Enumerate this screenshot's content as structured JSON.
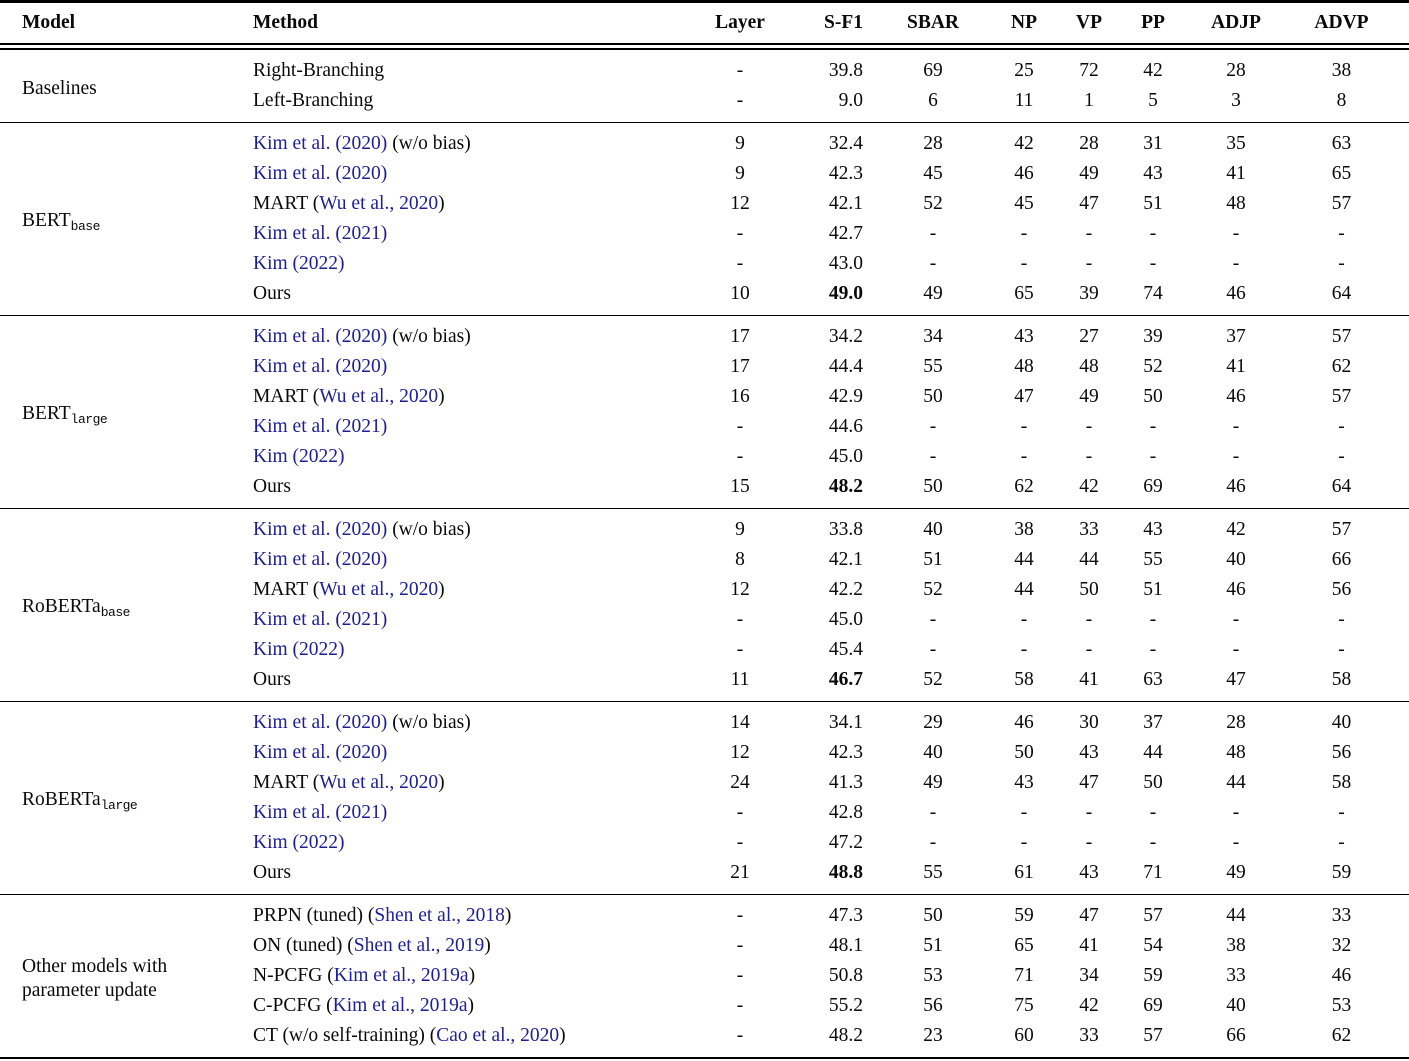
{
  "page": {
    "background": "#ffffff"
  },
  "colors": {
    "text": "#0a0a0a",
    "link": "#1e1e96",
    "rule": "#000000"
  },
  "table": {
    "columns": [
      "Model",
      "Method",
      "Layer",
      "S-F1",
      "SBAR",
      "NP",
      "VP",
      "PP",
      "ADJP",
      "ADVP"
    ],
    "int_keys": [
      "sbar",
      "np",
      "vp",
      "pp",
      "adjp",
      "advp"
    ],
    "sections": [
      {
        "model": {
          "name": "Baselines",
          "sub": ""
        },
        "rows": [
          {
            "method": [
              {
                "t": "Right-Branching",
                "link": false
              }
            ],
            "layer": "-",
            "sf1": "39.8",
            "bold": false,
            "vals": [
              "69",
              "25",
              "72",
              "42",
              "28",
              "38"
            ]
          },
          {
            "method": [
              {
                "t": "Left-Branching",
                "link": false
              }
            ],
            "layer": "-",
            "sf1": "9.0",
            "bold": false,
            "vals": [
              "6",
              "11",
              "1",
              "5",
              "3",
              "8"
            ]
          }
        ]
      },
      {
        "model": {
          "name": "BERT",
          "sub": "base"
        },
        "rows": [
          {
            "method": [
              {
                "t": "Kim et al. (2020)",
                "link": true
              },
              {
                "t": " (w/o bias)",
                "link": false
              }
            ],
            "layer": "9",
            "sf1": "32.4",
            "bold": false,
            "vals": [
              "28",
              "42",
              "28",
              "31",
              "35",
              "63"
            ]
          },
          {
            "method": [
              {
                "t": "Kim et al. (2020)",
                "link": true
              }
            ],
            "layer": "9",
            "sf1": "42.3",
            "bold": false,
            "vals": [
              "45",
              "46",
              "49",
              "43",
              "41",
              "65"
            ]
          },
          {
            "method": [
              {
                "t": "MART (",
                "link": false
              },
              {
                "t": "Wu et al., 2020",
                "link": true
              },
              {
                "t": ")",
                "link": false
              }
            ],
            "layer": "12",
            "sf1": "42.1",
            "bold": false,
            "vals": [
              "52",
              "45",
              "47",
              "51",
              "48",
              "57"
            ]
          },
          {
            "method": [
              {
                "t": "Kim et al. (2021)",
                "link": true
              }
            ],
            "layer": "-",
            "sf1": "42.7",
            "bold": false,
            "vals": [
              "-",
              "-",
              "-",
              "-",
              "-",
              "-"
            ]
          },
          {
            "method": [
              {
                "t": "Kim (2022)",
                "link": true
              }
            ],
            "layer": "-",
            "sf1": "43.0",
            "bold": false,
            "vals": [
              "-",
              "-",
              "-",
              "-",
              "-",
              "-"
            ]
          },
          {
            "method": [
              {
                "t": "Ours",
                "link": false
              }
            ],
            "layer": "10",
            "sf1": "49.0",
            "bold": true,
            "vals": [
              "49",
              "65",
              "39",
              "74",
              "46",
              "64"
            ]
          }
        ]
      },
      {
        "model": {
          "name": "BERT",
          "sub": "large"
        },
        "rows": [
          {
            "method": [
              {
                "t": "Kim et al. (2020)",
                "link": true
              },
              {
                "t": " (w/o bias)",
                "link": false
              }
            ],
            "layer": "17",
            "sf1": "34.2",
            "bold": false,
            "vals": [
              "34",
              "43",
              "27",
              "39",
              "37",
              "57"
            ]
          },
          {
            "method": [
              {
                "t": "Kim et al. (2020)",
                "link": true
              }
            ],
            "layer": "17",
            "sf1": "44.4",
            "bold": false,
            "vals": [
              "55",
              "48",
              "48",
              "52",
              "41",
              "62"
            ]
          },
          {
            "method": [
              {
                "t": "MART (",
                "link": false
              },
              {
                "t": "Wu et al., 2020",
                "link": true
              },
              {
                "t": ")",
                "link": false
              }
            ],
            "layer": "16",
            "sf1": "42.9",
            "bold": false,
            "vals": [
              "50",
              "47",
              "49",
              "50",
              "46",
              "57"
            ]
          },
          {
            "method": [
              {
                "t": "Kim et al. (2021)",
                "link": true
              }
            ],
            "layer": "-",
            "sf1": "44.6",
            "bold": false,
            "vals": [
              "-",
              "-",
              "-",
              "-",
              "-",
              "-"
            ]
          },
          {
            "method": [
              {
                "t": "Kim (2022)",
                "link": true
              }
            ],
            "layer": "-",
            "sf1": "45.0",
            "bold": false,
            "vals": [
              "-",
              "-",
              "-",
              "-",
              "-",
              "-"
            ]
          },
          {
            "method": [
              {
                "t": "Ours",
                "link": false
              }
            ],
            "layer": "15",
            "sf1": "48.2",
            "bold": true,
            "vals": [
              "50",
              "62",
              "42",
              "69",
              "46",
              "64"
            ]
          }
        ]
      },
      {
        "model": {
          "name": "RoBERTa",
          "sub": "base"
        },
        "rows": [
          {
            "method": [
              {
                "t": "Kim et al. (2020)",
                "link": true
              },
              {
                "t": " (w/o bias)",
                "link": false
              }
            ],
            "layer": "9",
            "sf1": "33.8",
            "bold": false,
            "vals": [
              "40",
              "38",
              "33",
              "43",
              "42",
              "57"
            ]
          },
          {
            "method": [
              {
                "t": "Kim et al. (2020)",
                "link": true
              }
            ],
            "layer": "8",
            "sf1": "42.1",
            "bold": false,
            "vals": [
              "51",
              "44",
              "44",
              "55",
              "40",
              "66"
            ]
          },
          {
            "method": [
              {
                "t": "MART (",
                "link": false
              },
              {
                "t": "Wu et al., 2020",
                "link": true
              },
              {
                "t": ")",
                "link": false
              }
            ],
            "layer": "12",
            "sf1": "42.2",
            "bold": false,
            "vals": [
              "52",
              "44",
              "50",
              "51",
              "46",
              "56"
            ]
          },
          {
            "method": [
              {
                "t": "Kim et al. (2021)",
                "link": true
              }
            ],
            "layer": "-",
            "sf1": "45.0",
            "bold": false,
            "vals": [
              "-",
              "-",
              "-",
              "-",
              "-",
              "-"
            ]
          },
          {
            "method": [
              {
                "t": "Kim (2022)",
                "link": true
              }
            ],
            "layer": "-",
            "sf1": "45.4",
            "bold": false,
            "vals": [
              "-",
              "-",
              "-",
              "-",
              "-",
              "-"
            ]
          },
          {
            "method": [
              {
                "t": "Ours",
                "link": false
              }
            ],
            "layer": "11",
            "sf1": "46.7",
            "bold": true,
            "vals": [
              "52",
              "58",
              "41",
              "63",
              "47",
              "58"
            ]
          }
        ]
      },
      {
        "model": {
          "name": "RoBERTa",
          "sub": "large"
        },
        "rows": [
          {
            "method": [
              {
                "t": "Kim et al. (2020)",
                "link": true
              },
              {
                "t": " (w/o bias)",
                "link": false
              }
            ],
            "layer": "14",
            "sf1": "34.1",
            "bold": false,
            "vals": [
              "29",
              "46",
              "30",
              "37",
              "28",
              "40"
            ]
          },
          {
            "method": [
              {
                "t": "Kim et al. (2020)",
                "link": true
              }
            ],
            "layer": "12",
            "sf1": "42.3",
            "bold": false,
            "vals": [
              "40",
              "50",
              "43",
              "44",
              "48",
              "56"
            ]
          },
          {
            "method": [
              {
                "t": "MART (",
                "link": false
              },
              {
                "t": "Wu et al., 2020",
                "link": true
              },
              {
                "t": ")",
                "link": false
              }
            ],
            "layer": "24",
            "sf1": "41.3",
            "bold": false,
            "vals": [
              "49",
              "43",
              "47",
              "50",
              "44",
              "58"
            ]
          },
          {
            "method": [
              {
                "t": "Kim et al. (2021)",
                "link": true
              }
            ],
            "layer": "-",
            "sf1": "42.8",
            "bold": false,
            "vals": [
              "-",
              "-",
              "-",
              "-",
              "-",
              "-"
            ]
          },
          {
            "method": [
              {
                "t": "Kim (2022)",
                "link": true
              }
            ],
            "layer": "-",
            "sf1": "47.2",
            "bold": false,
            "vals": [
              "-",
              "-",
              "-",
              "-",
              "-",
              "-"
            ]
          },
          {
            "method": [
              {
                "t": "Ours",
                "link": false
              }
            ],
            "layer": "21",
            "sf1": "48.8",
            "bold": true,
            "vals": [
              "55",
              "61",
              "43",
              "71",
              "49",
              "59"
            ]
          }
        ]
      },
      {
        "model": {
          "name": "Other models with parameter update",
          "sub": ""
        },
        "rows": [
          {
            "method": [
              {
                "t": "PRPN (tuned) (",
                "link": false
              },
              {
                "t": "Shen et al., 2018",
                "link": true
              },
              {
                "t": ")",
                "link": false
              }
            ],
            "layer": "-",
            "sf1": "47.3",
            "bold": false,
            "vals": [
              "50",
              "59",
              "47",
              "57",
              "44",
              "33"
            ]
          },
          {
            "method": [
              {
                "t": "ON (tuned) (",
                "link": false
              },
              {
                "t": "Shen et al., 2019",
                "link": true
              },
              {
                "t": ")",
                "link": false
              }
            ],
            "layer": "-",
            "sf1": "48.1",
            "bold": false,
            "vals": [
              "51",
              "65",
              "41",
              "54",
              "38",
              "32"
            ]
          },
          {
            "method": [
              {
                "t": "N-PCFG (",
                "link": false
              },
              {
                "t": "Kim et al., 2019a",
                "link": true
              },
              {
                "t": ")",
                "link": false
              }
            ],
            "layer": "-",
            "sf1": "50.8",
            "bold": false,
            "vals": [
              "53",
              "71",
              "34",
              "59",
              "33",
              "46"
            ]
          },
          {
            "method": [
              {
                "t": "C-PCFG (",
                "link": false
              },
              {
                "t": "Kim et al., 2019a",
                "link": true
              },
              {
                "t": ")",
                "link": false
              }
            ],
            "layer": "-",
            "sf1": "55.2",
            "bold": false,
            "vals": [
              "56",
              "75",
              "42",
              "69",
              "40",
              "53"
            ]
          },
          {
            "method": [
              {
                "t": "CT (w/o self-training) (",
                "link": false
              },
              {
                "t": "Cao et al., 2020",
                "link": true
              },
              {
                "t": ")",
                "link": false
              }
            ],
            "layer": "-",
            "sf1": "48.2",
            "bold": false,
            "vals": [
              "23",
              "60",
              "33",
              "57",
              "66",
              "62"
            ]
          }
        ]
      }
    ]
  }
}
